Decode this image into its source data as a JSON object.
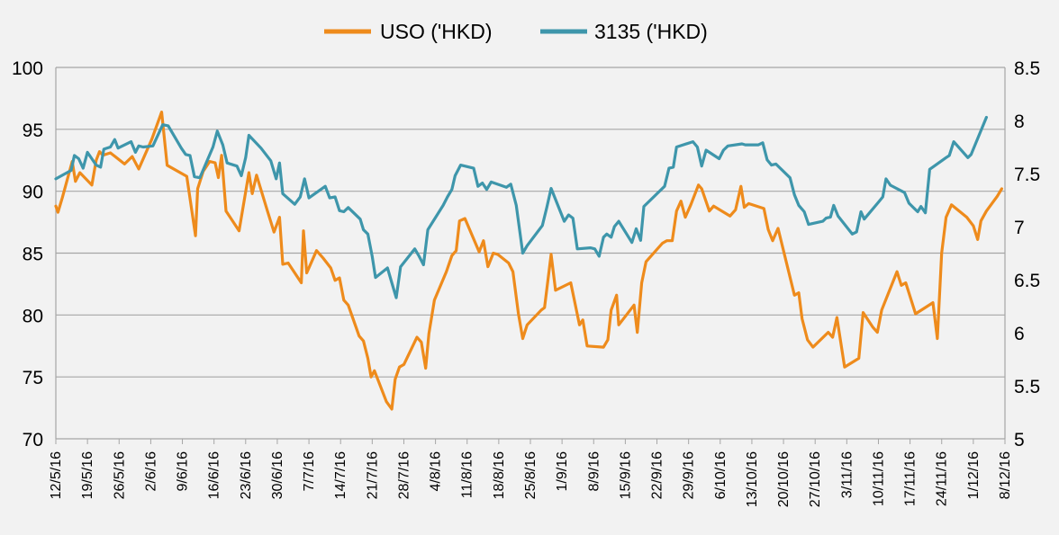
{
  "chart_data": {
    "type": "line",
    "legend_position": "top-center",
    "grid": {
      "horizontal": true,
      "vertical": false
    },
    "x_labels": [
      "12/5/16",
      "19/5/16",
      "26/5/16",
      "2/6/16",
      "9/6/16",
      "16/6/16",
      "23/6/16",
      "30/6/16",
      "7/7/16",
      "14/7/16",
      "21/7/16",
      "28/7/16",
      "4/8/16",
      "11/8/16",
      "18/8/16",
      "25/8/16",
      "1/9/16",
      "8/9/16",
      "15/9/16",
      "22/9/16",
      "29/9/16",
      "6/10/16",
      "13/10/16",
      "20/10/16",
      "27/10/16",
      "3/11/16",
      "10/11/16",
      "17/11/16",
      "24/11/16",
      "1/12/16",
      "8/12/16"
    ],
    "y_left": {
      "min": 70,
      "max": 100,
      "ticks": [
        "70",
        "75",
        "80",
        "85",
        "90",
        "95",
        "100"
      ]
    },
    "y_right": {
      "min": 5,
      "max": 8.5,
      "ticks": [
        "5",
        "5.5",
        "6",
        "6.5",
        "7",
        "7.5",
        "8",
        "8.5"
      ]
    },
    "series": [
      {
        "name": "USO ('HKD)",
        "color": "#ee8b1c",
        "axis": "left",
        "points": [
          [
            0,
            88.8
          ],
          [
            0.2,
            88.3
          ],
          [
            0.6,
            89.5
          ],
          [
            1.5,
            92.4
          ],
          [
            1.8,
            90.8
          ],
          [
            2.2,
            91.5
          ],
          [
            3.3,
            90.5
          ],
          [
            3.7,
            92.5
          ],
          [
            4.0,
            93.2
          ],
          [
            4.3,
            92.9
          ],
          [
            5.0,
            93.1
          ],
          [
            6.3,
            92.2
          ],
          [
            7.0,
            92.8
          ],
          [
            7.6,
            91.8
          ],
          [
            8.8,
            94.2
          ],
          [
            9.7,
            96.4
          ],
          [
            10.2,
            92.1
          ],
          [
            12.0,
            91.2
          ],
          [
            12.8,
            86.4
          ],
          [
            13.0,
            90.2
          ],
          [
            13.5,
            91.6
          ],
          [
            14.1,
            92.4
          ],
          [
            14.6,
            92.3
          ],
          [
            14.9,
            91.1
          ],
          [
            15.2,
            92.9
          ],
          [
            15.6,
            88.4
          ],
          [
            16.8,
            86.8
          ],
          [
            17.7,
            91.5
          ],
          [
            18.0,
            89.8
          ],
          [
            18.4,
            91.3
          ],
          [
            19.4,
            88.4
          ],
          [
            20.0,
            86.7
          ],
          [
            20.5,
            87.9
          ],
          [
            20.8,
            84.1
          ],
          [
            21.3,
            84.2
          ],
          [
            22.5,
            82.6
          ],
          [
            22.7,
            86.8
          ],
          [
            23.0,
            83.4
          ],
          [
            23.9,
            85.2
          ],
          [
            24.5,
            84.6
          ],
          [
            25.2,
            83.8
          ],
          [
            25.6,
            82.8
          ],
          [
            26.0,
            83.0
          ],
          [
            26.4,
            81.2
          ],
          [
            26.8,
            80.8
          ],
          [
            27.8,
            78.3
          ],
          [
            28.2,
            77.9
          ],
          [
            28.6,
            76.5
          ],
          [
            28.9,
            75.0
          ],
          [
            29.2,
            75.5
          ],
          [
            30.3,
            73.0
          ],
          [
            30.8,
            72.4
          ],
          [
            31.1,
            74.8
          ],
          [
            31.5,
            75.8
          ],
          [
            31.9,
            76.0
          ],
          [
            33.1,
            78.2
          ],
          [
            33.5,
            77.8
          ],
          [
            33.9,
            75.7
          ],
          [
            34.2,
            78.5
          ],
          [
            34.7,
            81.2
          ],
          [
            35.8,
            83.5
          ],
          [
            36.3,
            84.8
          ],
          [
            36.7,
            85.2
          ],
          [
            37.0,
            87.6
          ],
          [
            37.5,
            87.8
          ],
          [
            38.8,
            85.1
          ],
          [
            39.2,
            86.0
          ],
          [
            39.6,
            83.9
          ],
          [
            40.1,
            85.0
          ],
          [
            40.5,
            84.9
          ],
          [
            41.5,
            84.2
          ],
          [
            41.9,
            83.5
          ],
          [
            42.4,
            80.1
          ],
          [
            42.8,
            78.1
          ],
          [
            43.2,
            79.2
          ],
          [
            44.5,
            80.4
          ],
          [
            44.8,
            80.6
          ],
          [
            45.4,
            84.9
          ],
          [
            45.8,
            82.0
          ],
          [
            47.2,
            82.6
          ],
          [
            48.0,
            79.2
          ],
          [
            48.3,
            79.6
          ],
          [
            48.7,
            77.5
          ],
          [
            50.2,
            77.4
          ],
          [
            50.6,
            78.0
          ],
          [
            50.9,
            80.4
          ],
          [
            51.4,
            81.6
          ],
          [
            51.6,
            79.2
          ],
          [
            52.3,
            80.0
          ],
          [
            53.0,
            80.8
          ],
          [
            53.3,
            78.6
          ],
          [
            53.7,
            82.6
          ],
          [
            54.1,
            84.3
          ],
          [
            55.6,
            85.8
          ],
          [
            56.0,
            86.0
          ],
          [
            56.5,
            86.0
          ],
          [
            56.9,
            88.4
          ],
          [
            57.3,
            89.2
          ],
          [
            57.7,
            87.9
          ],
          [
            58.2,
            88.9
          ],
          [
            58.9,
            90.5
          ],
          [
            59.2,
            90.2
          ],
          [
            59.9,
            88.4
          ],
          [
            60.3,
            88.8
          ],
          [
            61.8,
            88.0
          ],
          [
            62.3,
            88.5
          ],
          [
            62.8,
            90.4
          ],
          [
            63.1,
            88.7
          ],
          [
            63.5,
            89.0
          ],
          [
            64.9,
            88.6
          ],
          [
            65.3,
            86.9
          ],
          [
            65.7,
            86.0
          ],
          [
            66.2,
            87.0
          ],
          [
            67.7,
            81.6
          ],
          [
            68.1,
            81.8
          ],
          [
            68.4,
            79.7
          ],
          [
            68.9,
            78.0
          ],
          [
            69.4,
            77.4
          ],
          [
            70.8,
            78.6
          ],
          [
            71.2,
            78.2
          ],
          [
            71.6,
            79.8
          ],
          [
            72.3,
            75.8
          ],
          [
            73.6,
            76.5
          ],
          [
            74.0,
            80.2
          ],
          [
            74.9,
            79.0
          ],
          [
            75.3,
            78.6
          ],
          [
            75.7,
            80.4
          ],
          [
            77.1,
            83.5
          ],
          [
            77.5,
            82.4
          ],
          [
            77.9,
            82.6
          ],
          [
            78.8,
            80.1
          ],
          [
            80.4,
            81.0
          ],
          [
            80.8,
            78.1
          ],
          [
            81.2,
            85.0
          ],
          [
            81.6,
            87.9
          ],
          [
            82.1,
            88.9
          ],
          [
            83.5,
            87.9
          ],
          [
            84.1,
            87.2
          ],
          [
            84.5,
            86.1
          ],
          [
            84.8,
            87.6
          ],
          [
            85.3,
            88.4
          ],
          [
            86.3,
            89.6
          ],
          [
            86.7,
            90.2
          ]
        ]
      },
      {
        "name": "3135 ('HKD)",
        "color": "#3e96ab",
        "axis": "right",
        "points": [
          [
            0,
            7.45
          ],
          [
            1.4,
            7.53
          ],
          [
            1.7,
            7.67
          ],
          [
            2.1,
            7.64
          ],
          [
            2.5,
            7.55
          ],
          [
            2.9,
            7.7
          ],
          [
            3.7,
            7.58
          ],
          [
            4.1,
            7.56
          ],
          [
            4.4,
            7.73
          ],
          [
            5.0,
            7.75
          ],
          [
            5.4,
            7.82
          ],
          [
            5.7,
            7.74
          ],
          [
            6.9,
            7.8
          ],
          [
            7.3,
            7.7
          ],
          [
            7.6,
            7.76
          ],
          [
            8.0,
            7.75
          ],
          [
            8.9,
            7.76
          ],
          [
            9.8,
            7.96
          ],
          [
            10.3,
            7.95
          ],
          [
            11.5,
            7.74
          ],
          [
            11.9,
            7.68
          ],
          [
            12.3,
            7.67
          ],
          [
            12.7,
            7.47
          ],
          [
            13.2,
            7.46
          ],
          [
            14.4,
            7.75
          ],
          [
            14.8,
            7.9
          ],
          [
            15.3,
            7.77
          ],
          [
            15.7,
            7.6
          ],
          [
            16.6,
            7.57
          ],
          [
            17.0,
            7.48
          ],
          [
            17.4,
            7.65
          ],
          [
            17.7,
            7.86
          ],
          [
            18.8,
            7.74
          ],
          [
            19.7,
            7.62
          ],
          [
            20.2,
            7.45
          ],
          [
            20.5,
            7.6
          ],
          [
            20.8,
            7.31
          ],
          [
            21.9,
            7.21
          ],
          [
            22.4,
            7.28
          ],
          [
            22.8,
            7.45
          ],
          [
            23.2,
            7.27
          ],
          [
            24.7,
            7.38
          ],
          [
            25.1,
            7.27
          ],
          [
            25.6,
            7.28
          ],
          [
            26.0,
            7.15
          ],
          [
            26.4,
            7.14
          ],
          [
            26.8,
            7.18
          ],
          [
            27.9,
            7.07
          ],
          [
            28.2,
            6.97
          ],
          [
            28.6,
            6.93
          ],
          [
            29.0,
            6.72
          ],
          [
            29.3,
            6.52
          ],
          [
            30.4,
            6.61
          ],
          [
            30.8,
            6.47
          ],
          [
            31.2,
            6.33
          ],
          [
            31.6,
            6.62
          ],
          [
            32.9,
            6.79
          ],
          [
            33.3,
            6.72
          ],
          [
            33.7,
            6.64
          ],
          [
            34.1,
            6.97
          ],
          [
            35.5,
            7.2
          ],
          [
            35.9,
            7.28
          ],
          [
            36.3,
            7.35
          ],
          [
            36.6,
            7.48
          ],
          [
            37.1,
            7.58
          ],
          [
            38.3,
            7.55
          ],
          [
            38.7,
            7.38
          ],
          [
            39.1,
            7.41
          ],
          [
            39.5,
            7.35
          ],
          [
            39.9,
            7.42
          ],
          [
            41.3,
            7.37
          ],
          [
            41.7,
            7.4
          ],
          [
            42.2,
            7.2
          ],
          [
            42.8,
            6.75
          ],
          [
            43.2,
            6.82
          ],
          [
            44.6,
            7.01
          ],
          [
            45.0,
            7.18
          ],
          [
            45.4,
            7.36
          ],
          [
            46.6,
            7.05
          ],
          [
            47.0,
            7.11
          ],
          [
            47.4,
            7.08
          ],
          [
            47.8,
            6.79
          ],
          [
            49.0,
            6.8
          ],
          [
            49.4,
            6.79
          ],
          [
            49.8,
            6.72
          ],
          [
            50.2,
            6.9
          ],
          [
            50.5,
            6.93
          ],
          [
            50.9,
            6.9
          ],
          [
            51.2,
            7.0
          ],
          [
            51.6,
            7.05
          ],
          [
            52.8,
            6.85
          ],
          [
            53.2,
            6.98
          ],
          [
            53.6,
            6.87
          ],
          [
            53.9,
            7.19
          ],
          [
            55.4,
            7.34
          ],
          [
            55.8,
            7.38
          ],
          [
            56.2,
            7.55
          ],
          [
            56.6,
            7.56
          ],
          [
            56.9,
            7.75
          ],
          [
            58.4,
            7.8
          ],
          [
            58.8,
            7.75
          ],
          [
            59.2,
            7.57
          ],
          [
            59.6,
            7.72
          ],
          [
            60.8,
            7.64
          ],
          [
            61.2,
            7.72
          ],
          [
            61.6,
            7.76
          ],
          [
            62.9,
            7.78
          ],
          [
            63.2,
            7.77
          ],
          [
            64.4,
            7.77
          ],
          [
            64.8,
            7.79
          ],
          [
            65.2,
            7.63
          ],
          [
            65.6,
            7.58
          ],
          [
            66.0,
            7.59
          ],
          [
            67.3,
            7.46
          ],
          [
            67.7,
            7.3
          ],
          [
            68.1,
            7.2
          ],
          [
            68.6,
            7.14
          ],
          [
            69.0,
            7.02
          ],
          [
            70.3,
            7.05
          ],
          [
            70.6,
            7.08
          ],
          [
            71.0,
            7.09
          ],
          [
            71.3,
            7.2
          ],
          [
            71.7,
            7.1
          ],
          [
            73.0,
            6.93
          ],
          [
            73.4,
            6.95
          ],
          [
            73.8,
            7.14
          ],
          [
            74.1,
            7.07
          ],
          [
            75.4,
            7.23
          ],
          [
            75.8,
            7.28
          ],
          [
            76.1,
            7.45
          ],
          [
            76.5,
            7.39
          ],
          [
            77.8,
            7.32
          ],
          [
            78.2,
            7.22
          ],
          [
            78.6,
            7.18
          ],
          [
            79.0,
            7.14
          ],
          [
            79.3,
            7.19
          ],
          [
            79.7,
            7.13
          ],
          [
            80.1,
            7.54
          ],
          [
            81.6,
            7.65
          ],
          [
            81.9,
            7.67
          ],
          [
            82.3,
            7.8
          ],
          [
            83.6,
            7.65
          ],
          [
            83.9,
            7.68
          ],
          [
            85.3,
            8.03
          ]
        ]
      }
    ]
  }
}
